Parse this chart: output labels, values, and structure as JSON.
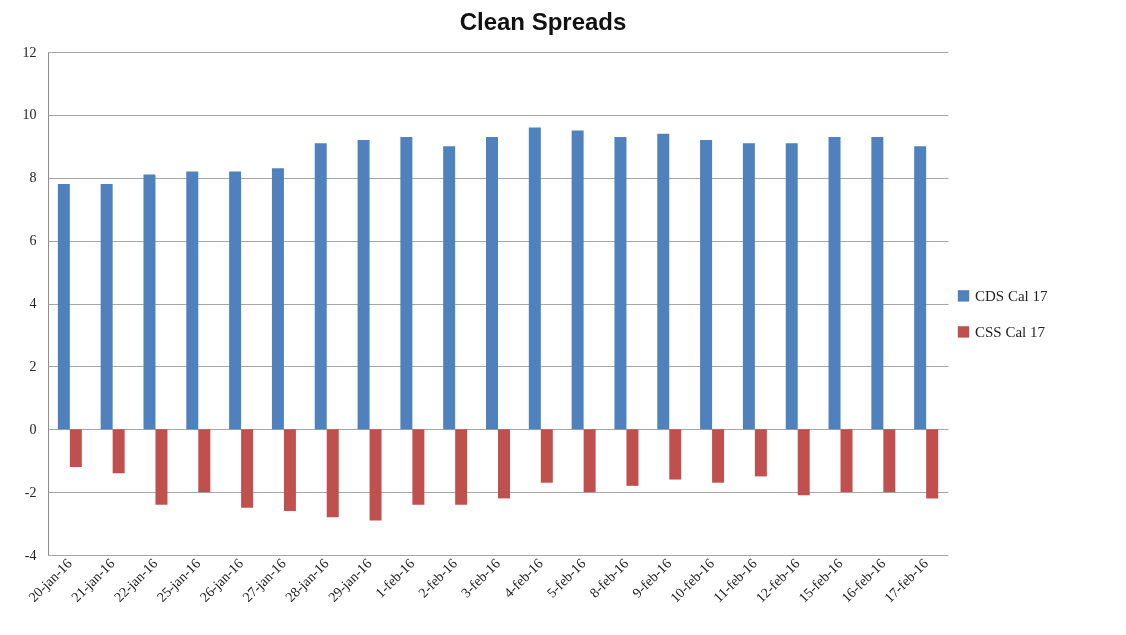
{
  "chart_data": {
    "type": "bar",
    "title": "Clean Spreads",
    "categories": [
      "20-jan-16",
      "21-jan-16",
      "22-jan-16",
      "25-jan-16",
      "26-jan-16",
      "27-jan-16",
      "28-jan-16",
      "29-jan-16",
      "1-feb-16",
      "2-feb-16",
      "3-feb-16",
      "4-feb-16",
      "5-feb-16",
      "8-feb-16",
      "9-feb-16",
      "10-feb-16",
      "11-feb-16",
      "12-feb-16",
      "15-feb-16",
      "16-feb-16",
      "17-feb-16"
    ],
    "series": [
      {
        "name": "CDS Cal 17",
        "color": "#4f81bd",
        "values": [
          7.8,
          7.8,
          8.1,
          8.2,
          8.2,
          8.3,
          9.1,
          9.2,
          9.3,
          9.0,
          9.3,
          9.6,
          9.5,
          9.3,
          9.4,
          9.2,
          9.1,
          9.1,
          9.3,
          9.3,
          9.0
        ]
      },
      {
        "name": "CSS Cal 17",
        "color": "#c0504d",
        "values": [
          -1.2,
          -1.4,
          -2.4,
          -2.0,
          -2.5,
          -2.6,
          -2.8,
          -2.9,
          -2.4,
          -2.4,
          -2.2,
          -1.7,
          -2.0,
          -1.8,
          -1.6,
          -1.7,
          -1.5,
          -2.1,
          -2.0,
          -2.0,
          -2.2
        ]
      }
    ],
    "ylim": [
      -4,
      12
    ],
    "yticks": [
      -4,
      -2,
      0,
      2,
      4,
      6,
      8,
      10,
      12
    ],
    "grid": "y",
    "legend": "right"
  }
}
